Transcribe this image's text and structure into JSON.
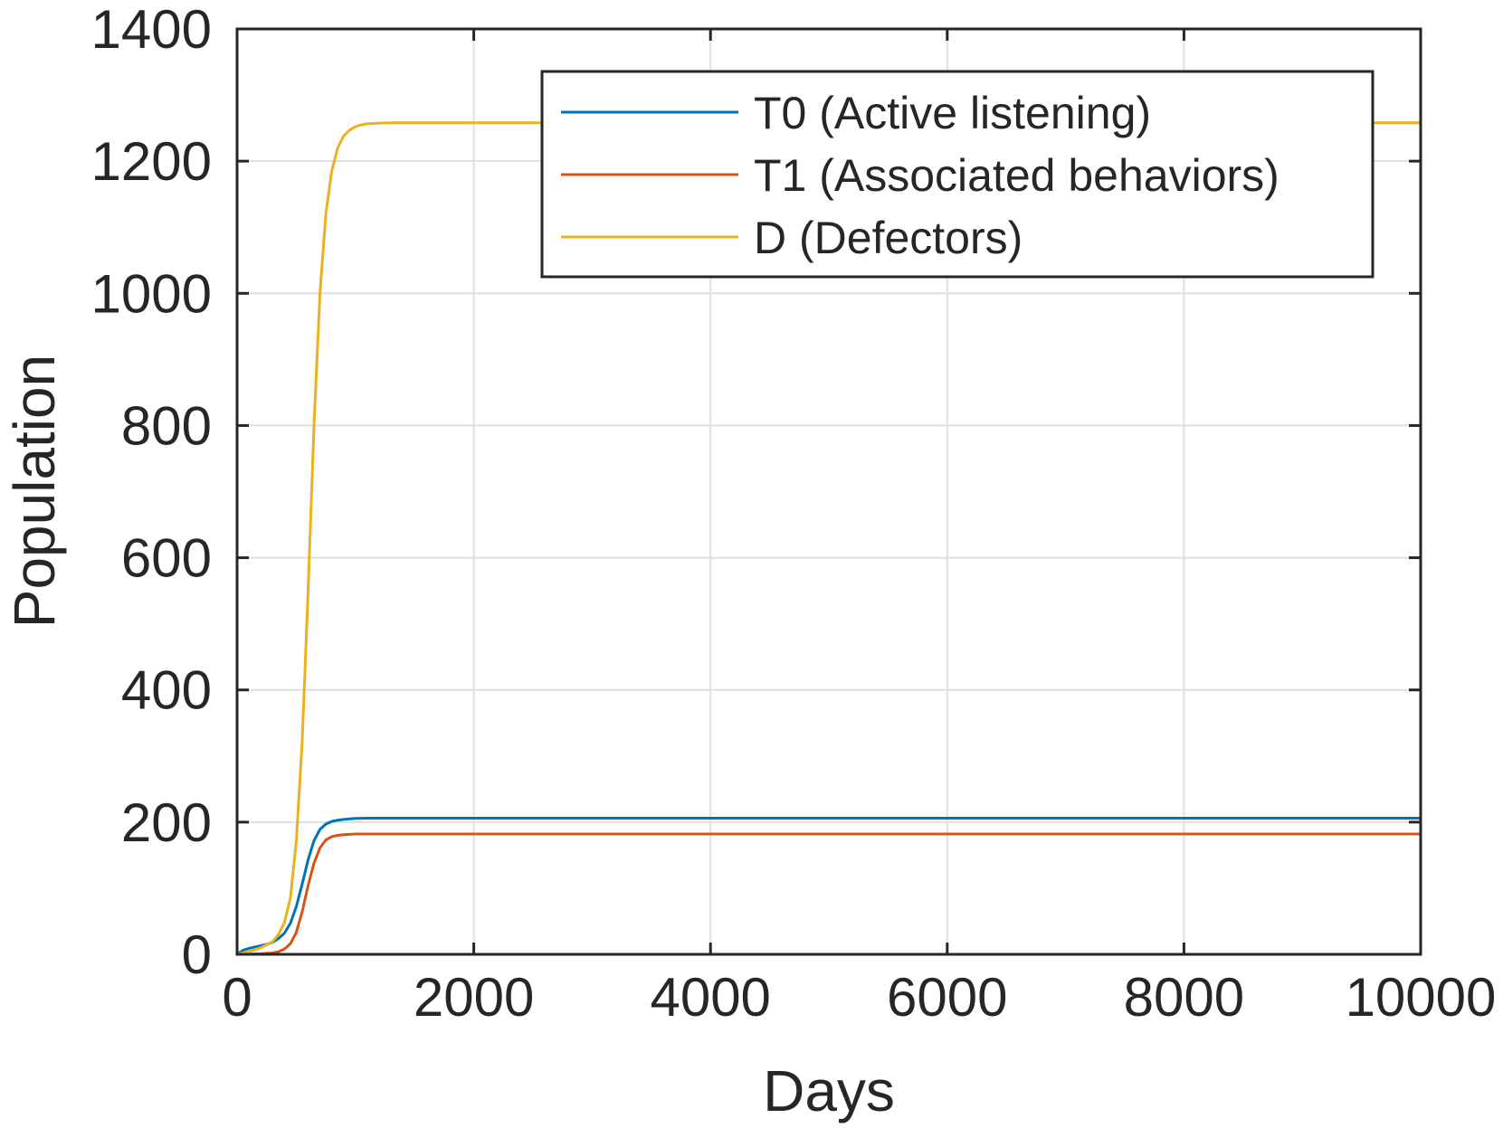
{
  "chart_data": {
    "type": "line",
    "title": "",
    "xlabel": "Days",
    "ylabel": "Population",
    "xlim": [
      0,
      10000
    ],
    "ylim": [
      0,
      1400
    ],
    "xticks": [
      0,
      2000,
      4000,
      6000,
      8000,
      10000
    ],
    "xtick_labels": [
      "0",
      "2000",
      "4000",
      "6000",
      "8000",
      "10000"
    ],
    "yticks": [
      0,
      200,
      400,
      600,
      800,
      1000,
      1200,
      1400
    ],
    "ytick_labels": [
      "0",
      "200",
      "400",
      "600",
      "800",
      "1000",
      "1200",
      "1400"
    ],
    "grid": true,
    "legend_position": "top-right",
    "series": [
      {
        "name": "T0 (Active listening)",
        "color": "#0072BD",
        "x": [
          0,
          50,
          100,
          150,
          200,
          250,
          300,
          350,
          400,
          450,
          500,
          550,
          600,
          650,
          700,
          750,
          800,
          850,
          900,
          950,
          1000,
          1100,
          1200,
          1400,
          1600,
          2000,
          3000,
          4000,
          6000,
          8000,
          10000
        ],
        "y": [
          0,
          6,
          9,
          11,
          13,
          15,
          18,
          24,
          32,
          47,
          72,
          106,
          143,
          172,
          189,
          197,
          201,
          203,
          204,
          205,
          205.5,
          206,
          206,
          206,
          206,
          206,
          206,
          206,
          206,
          206,
          206
        ]
      },
      {
        "name": "T1 (Associated behaviors)",
        "color": "#D95319",
        "x": [
          0,
          100,
          200,
          300,
          350,
          400,
          450,
          500,
          550,
          600,
          650,
          700,
          750,
          800,
          850,
          900,
          950,
          1000,
          1100,
          1200,
          1400,
          2000,
          3000,
          4000,
          6000,
          8000,
          10000
        ],
        "y": [
          0,
          0.3,
          0.8,
          2,
          4,
          8,
          16,
          33,
          64,
          104,
          138,
          161,
          173,
          178,
          180,
          181,
          181.5,
          182,
          182,
          182,
          182,
          182,
          182,
          182,
          182,
          182,
          182
        ]
      },
      {
        "name": "D (Defectors)",
        "color": "#EDB120",
        "x": [
          0,
          100,
          200,
          300,
          350,
          400,
          450,
          500,
          550,
          600,
          650,
          700,
          750,
          800,
          850,
          900,
          950,
          1000,
          1050,
          1100,
          1200,
          1300,
          1500,
          2000,
          3000,
          4000,
          6000,
          8000,
          10000
        ],
        "y": [
          0,
          4,
          10,
          19,
          30,
          48,
          85,
          170,
          320,
          550,
          800,
          1000,
          1120,
          1185,
          1220,
          1238,
          1247,
          1252,
          1255,
          1256.5,
          1257.5,
          1258,
          1258,
          1258,
          1258,
          1258,
          1258,
          1258,
          1258
        ]
      }
    ]
  }
}
